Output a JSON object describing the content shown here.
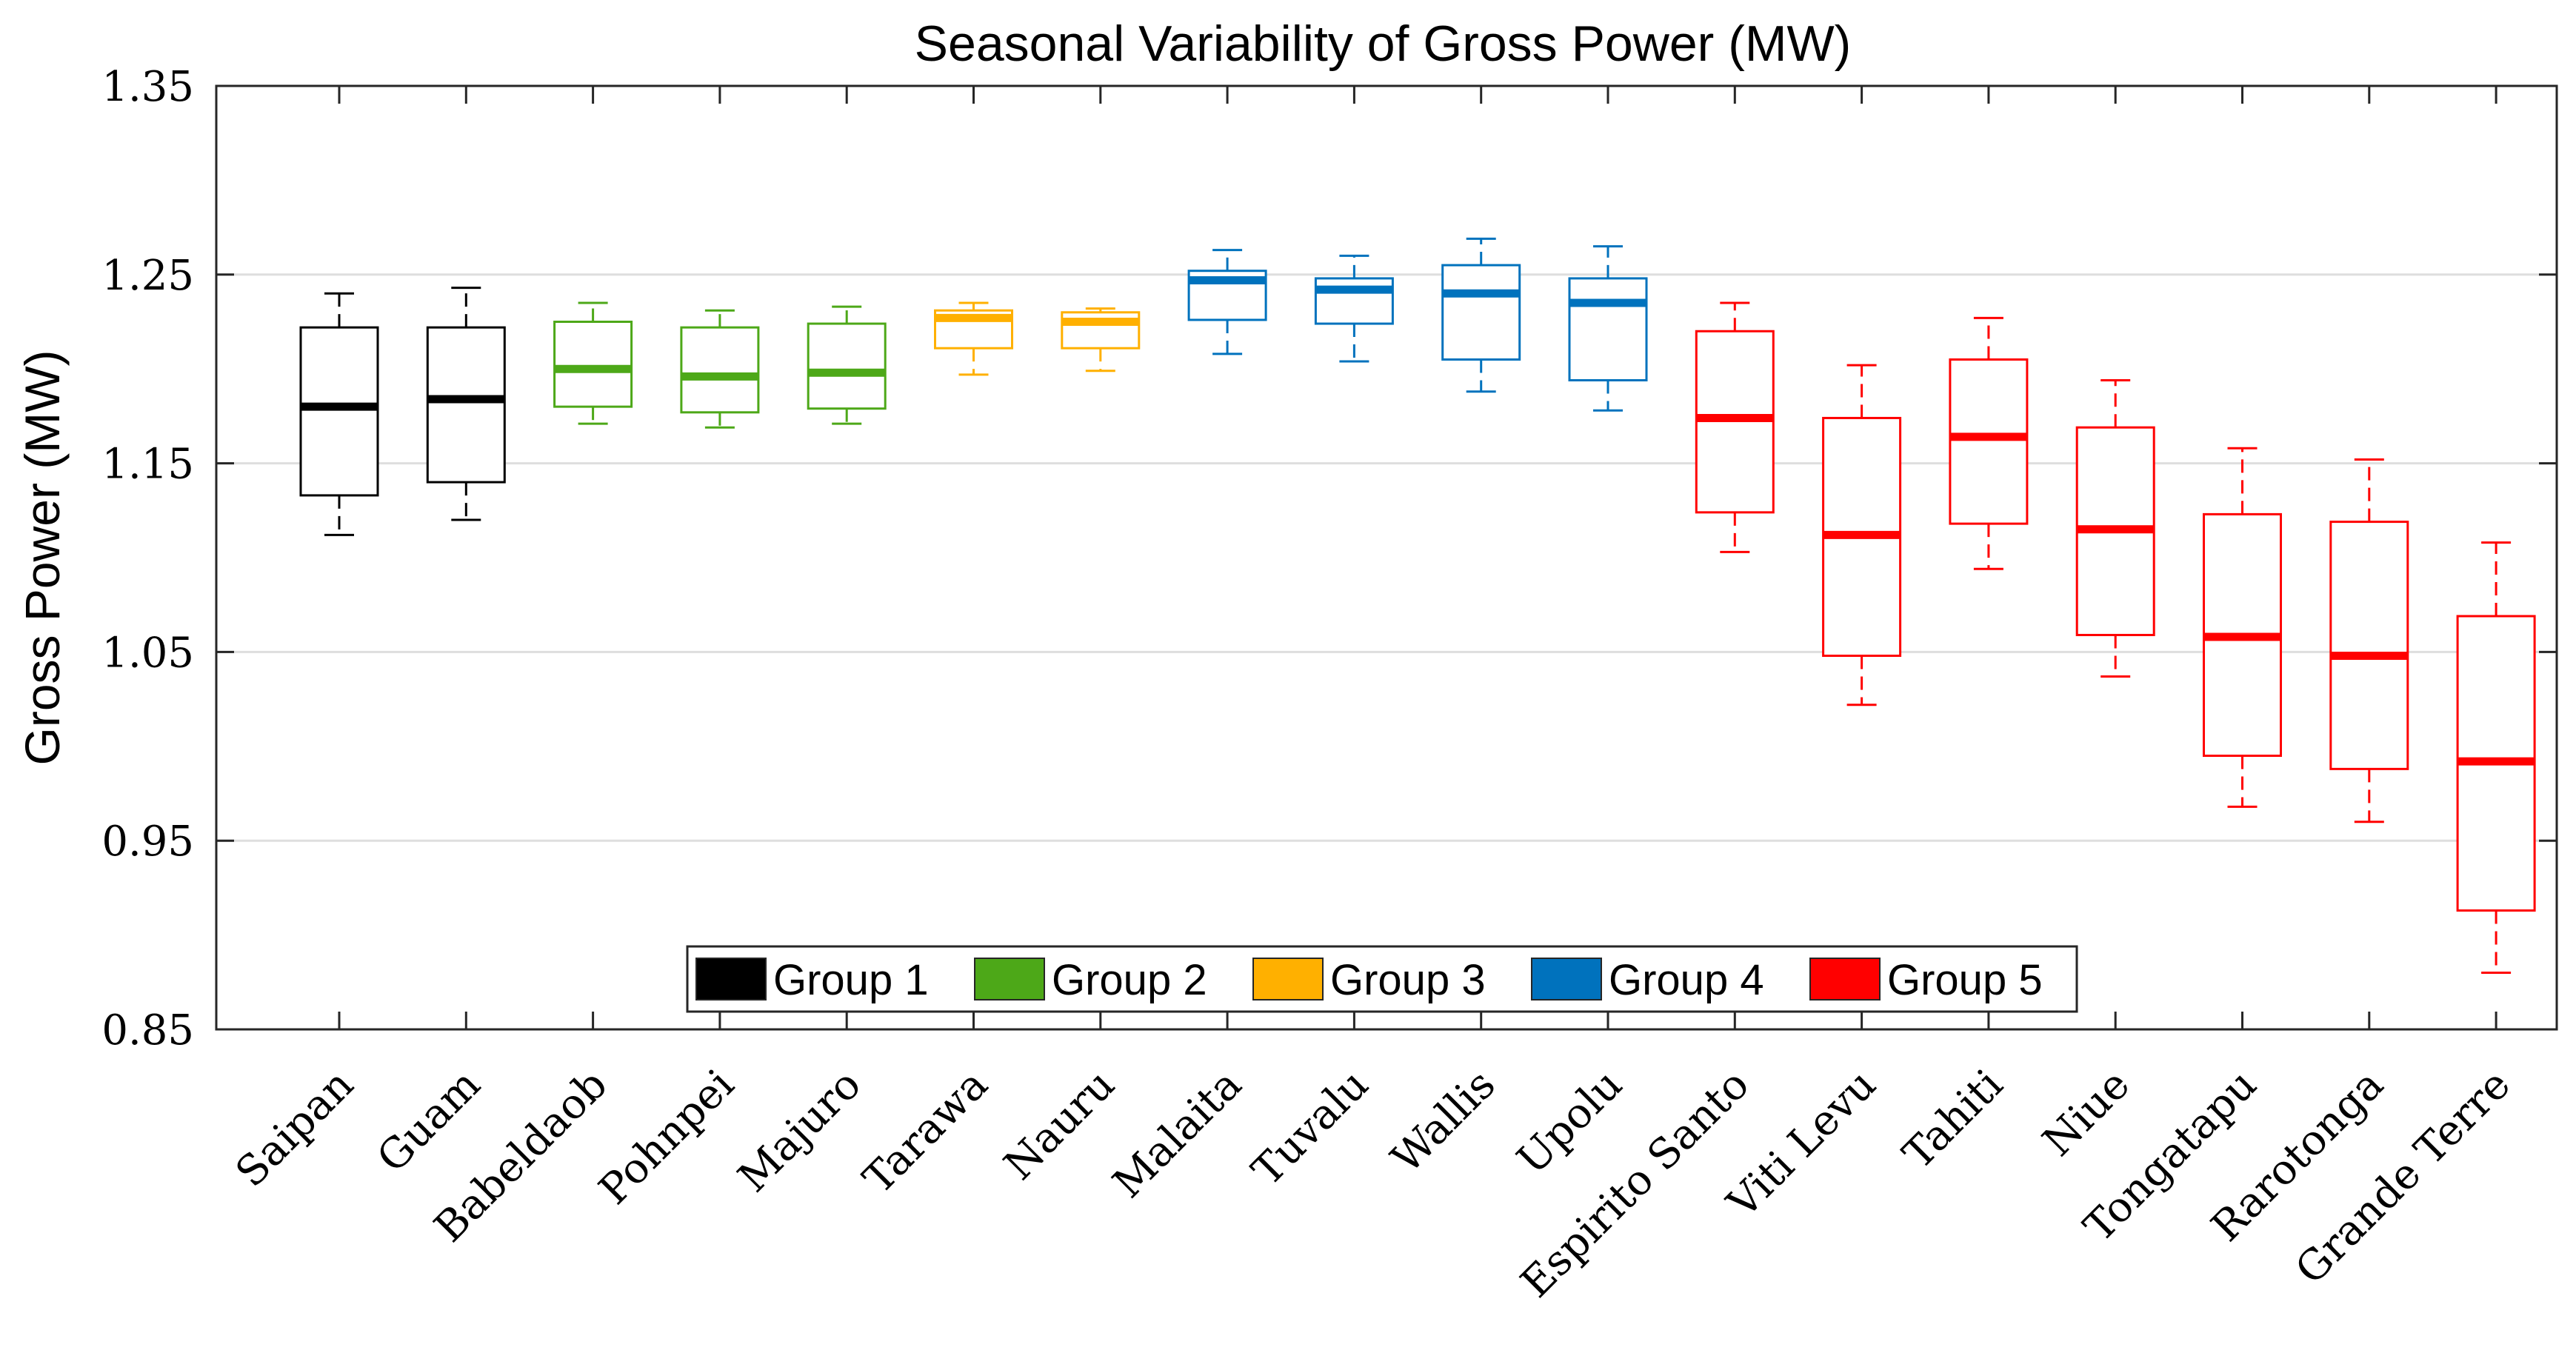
{
  "chart_data": {
    "type": "box",
    "title": "Seasonal Variability of Gross Power (MW)",
    "ylabel": "Gross Power (MW)",
    "xlabel": "",
    "ylim": [
      0.85,
      1.35
    ],
    "yticks": [
      0.85,
      0.95,
      1.05,
      1.15,
      1.25,
      1.35
    ],
    "ytick_labels": [
      "0.85",
      "0.95",
      "1.05",
      "1.15",
      "1.25",
      "1.35"
    ],
    "grid": "horizontal",
    "legend_position": "bottom-center",
    "legend": [
      {
        "label": "Group 1",
        "color": "#000000"
      },
      {
        "label": "Group 2",
        "color": "#4DA818"
      },
      {
        "label": "Group 3",
        "color": "#FFB000"
      },
      {
        "label": "Group 4",
        "color": "#0072BD"
      },
      {
        "label": "Group 5",
        "color": "#FF0000"
      }
    ],
    "categories": [
      "Saipan",
      "Guam",
      "Babeldaob",
      "Pohnpei",
      "Majuro",
      "Tarawa",
      "Nauru",
      "Malaita",
      "Tuvalu",
      "Wallis",
      "Upolu",
      "Espirito Santo",
      "Viti Levu",
      "Tahiti",
      "Niue",
      "Tongatapu",
      "Rarotonga",
      "Grande Terre"
    ],
    "boxes": [
      {
        "group": 1,
        "whisker_low": 1.112,
        "q1": 1.133,
        "median": 1.18,
        "q3": 1.222,
        "whisker_high": 1.24
      },
      {
        "group": 1,
        "whisker_low": 1.12,
        "q1": 1.14,
        "median": 1.184,
        "q3": 1.222,
        "whisker_high": 1.243
      },
      {
        "group": 2,
        "whisker_low": 1.171,
        "q1": 1.18,
        "median": 1.2,
        "q3": 1.225,
        "whisker_high": 1.235
      },
      {
        "group": 2,
        "whisker_low": 1.169,
        "q1": 1.177,
        "median": 1.196,
        "q3": 1.222,
        "whisker_high": 1.231
      },
      {
        "group": 2,
        "whisker_low": 1.171,
        "q1": 1.179,
        "median": 1.198,
        "q3": 1.224,
        "whisker_high": 1.233
      },
      {
        "group": 3,
        "whisker_low": 1.197,
        "q1": 1.211,
        "median": 1.227,
        "q3": 1.231,
        "whisker_high": 1.235
      },
      {
        "group": 3,
        "whisker_low": 1.199,
        "q1": 1.211,
        "median": 1.225,
        "q3": 1.23,
        "whisker_high": 1.232
      },
      {
        "group": 4,
        "whisker_low": 1.208,
        "q1": 1.226,
        "median": 1.247,
        "q3": 1.252,
        "whisker_high": 1.263
      },
      {
        "group": 4,
        "whisker_low": 1.204,
        "q1": 1.224,
        "median": 1.242,
        "q3": 1.248,
        "whisker_high": 1.26
      },
      {
        "group": 4,
        "whisker_low": 1.188,
        "q1": 1.205,
        "median": 1.24,
        "q3": 1.255,
        "whisker_high": 1.269
      },
      {
        "group": 4,
        "whisker_low": 1.178,
        "q1": 1.194,
        "median": 1.235,
        "q3": 1.248,
        "whisker_high": 1.265
      },
      {
        "group": 5,
        "whisker_low": 1.103,
        "q1": 1.124,
        "median": 1.174,
        "q3": 1.22,
        "whisker_high": 1.235
      },
      {
        "group": 5,
        "whisker_low": 1.022,
        "q1": 1.048,
        "median": 1.112,
        "q3": 1.174,
        "whisker_high": 1.202
      },
      {
        "group": 5,
        "whisker_low": 1.094,
        "q1": 1.118,
        "median": 1.164,
        "q3": 1.205,
        "whisker_high": 1.227
      },
      {
        "group": 5,
        "whisker_low": 1.037,
        "q1": 1.059,
        "median": 1.115,
        "q3": 1.169,
        "whisker_high": 1.194
      },
      {
        "group": 5,
        "whisker_low": 0.968,
        "q1": 0.995,
        "median": 1.058,
        "q3": 1.123,
        "whisker_high": 1.158
      },
      {
        "group": 5,
        "whisker_low": 0.96,
        "q1": 0.988,
        "median": 1.048,
        "q3": 1.119,
        "whisker_high": 1.152
      },
      {
        "group": 5,
        "whisker_low": 0.88,
        "q1": 0.913,
        "median": 0.992,
        "q3": 1.069,
        "whisker_high": 1.108
      }
    ]
  }
}
